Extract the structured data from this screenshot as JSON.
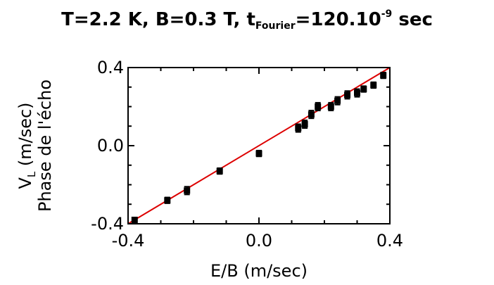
{
  "title": {
    "prefix": "T=2.2 K, B=0.3 T, t",
    "sub": "Fourier",
    "mid": "=120.10",
    "sup": "-9",
    "suffix": " sec"
  },
  "chart_data": {
    "type": "scatter",
    "xlabel": "E/B (m/sec)",
    "ylabel_line1_main": "V",
    "ylabel_line1_sub": "L",
    "ylabel_line1_rest": " (m/sec)",
    "ylabel_line2": "Phase de l'écho",
    "xlim": [
      -0.4,
      0.4
    ],
    "ylim": [
      -0.4,
      0.4
    ],
    "xticks": [
      -0.4,
      0.0,
      0.4
    ],
    "xtick_labels": [
      "-0.4",
      "0.0",
      "0.4"
    ],
    "yticks": [
      -0.4,
      0.0,
      0.4
    ],
    "ytick_labels": [
      "-0.4",
      "0.0",
      "0.4"
    ],
    "colors": {
      "fit": "#dd0000",
      "points": "#000000"
    },
    "fit_line": {
      "x": [
        -0.4,
        0.4
      ],
      "y": [
        -0.4,
        0.4
      ]
    },
    "points": [
      {
        "x": -0.38,
        "y": -0.38,
        "err": 0.012
      },
      {
        "x": -0.28,
        "y": -0.28,
        "err": 0.015
      },
      {
        "x": -0.22,
        "y": -0.23,
        "err": 0.02
      },
      {
        "x": -0.12,
        "y": -0.13,
        "err": 0.015
      },
      {
        "x": 0.0,
        "y": -0.04,
        "err": 0.015
      },
      {
        "x": 0.12,
        "y": 0.09,
        "err": 0.02
      },
      {
        "x": 0.14,
        "y": 0.11,
        "err": 0.02
      },
      {
        "x": 0.16,
        "y": 0.16,
        "err": 0.02
      },
      {
        "x": 0.18,
        "y": 0.2,
        "err": 0.02
      },
      {
        "x": 0.22,
        "y": 0.2,
        "err": 0.02
      },
      {
        "x": 0.24,
        "y": 0.23,
        "err": 0.02
      },
      {
        "x": 0.27,
        "y": 0.26,
        "err": 0.02
      },
      {
        "x": 0.3,
        "y": 0.27,
        "err": 0.02
      },
      {
        "x": 0.32,
        "y": 0.29,
        "err": 0.015
      },
      {
        "x": 0.35,
        "y": 0.31,
        "err": 0.015
      },
      {
        "x": 0.38,
        "y": 0.36,
        "err": 0.015
      }
    ]
  }
}
